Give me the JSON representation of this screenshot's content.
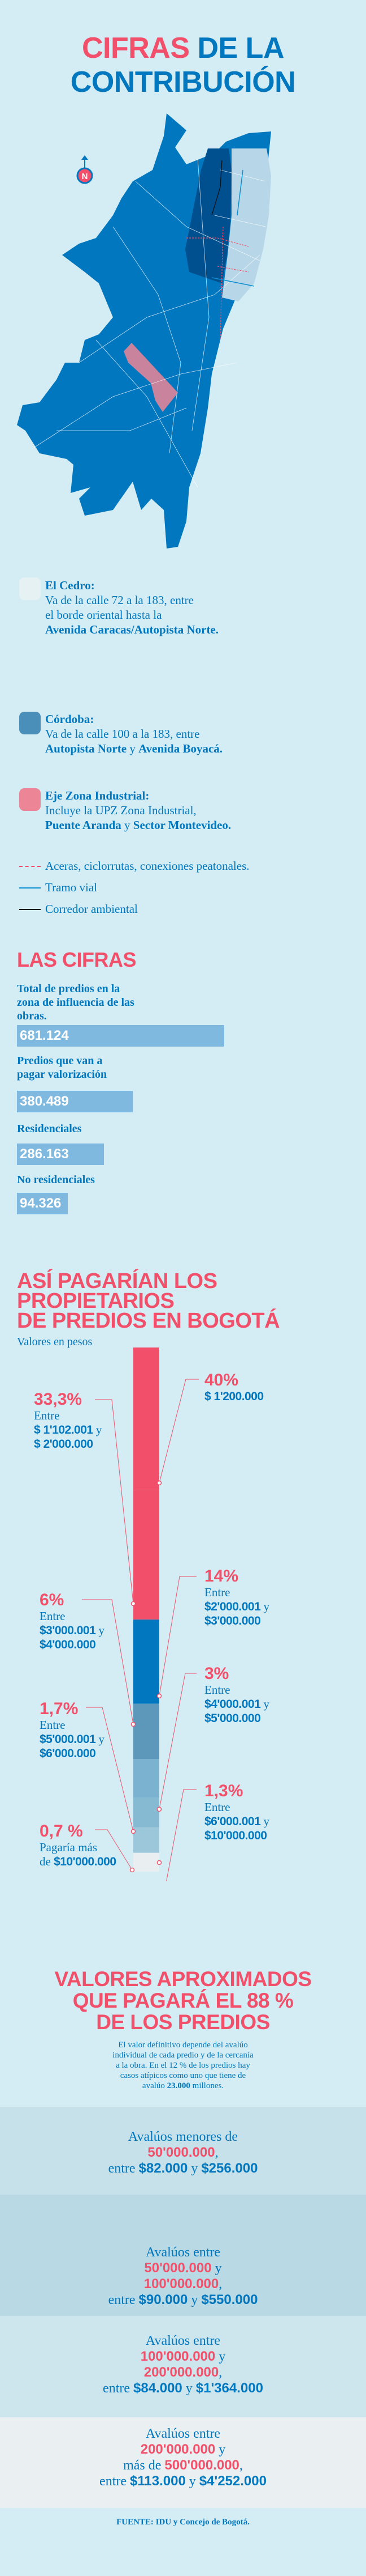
{
  "header": {
    "title_red": "CIFRAS",
    "title_blue_1": "DE LA",
    "title_blue_2": "CONTRIBUCIÓN"
  },
  "map": {
    "north_label": "N"
  },
  "legend": {
    "zones": [
      {
        "name": "El Cedro:",
        "line1": "Va de la calle 72 a la 183, entre",
        "line2": "el borde oriental hasta la",
        "bold1": "Avenida Caracas/Autopista Norte.",
        "swatch": "#e6f1f4"
      },
      {
        "name": "Córdoba:",
        "line1": "Va de la calle 100 a la 183, entre",
        "bold1": "Autopista Norte",
        "conj": "y",
        "bold2": "Avenida Boyacá.",
        "swatch": "#4a8fba"
      },
      {
        "name": "Eje Zona Industrial:",
        "line1": "Incluye la UPZ Zona Industrial,",
        "bold1": "Puente Aranda",
        "conj": "y",
        "bold2": "Sector Montevideo.",
        "swatch": "#ec8596"
      }
    ],
    "lines": [
      {
        "label": "Aceras, ciclorrutas, conexiones peatonales.",
        "color": "#f2506a"
      },
      {
        "label": "Tramo vial",
        "color": "#0a8fd0"
      },
      {
        "label": "Corredor ambiental",
        "color": "#111111"
      }
    ]
  },
  "cifras": {
    "heading": "LAS CIFRAS",
    "items": [
      {
        "label": "Total de predios en la zona de influencia de las obras.",
        "value": "681.124",
        "number": 681124
      },
      {
        "label": "Predios que van a pagar valorización",
        "value": "380.489",
        "number": 380489
      },
      {
        "label": "Residenciales",
        "value": "286.163",
        "number": 286163
      },
      {
        "label": "No residenciales",
        "value": "94.326",
        "number": 94326
      }
    ]
  },
  "pagos": {
    "heading_1": "ASÍ PAGARÍAN LOS",
    "heading_2": "PROPIETARIOS",
    "heading_3": "DE PREDIOS EN BOGOTÁ",
    "subtitle": "Valores en pesos",
    "conj": "y",
    "entre": "Entre"
  },
  "chart_data": {
    "type": "bar",
    "title": "Así pagarían los propietarios de predios en Bogotá",
    "ylabel": "Valores en pesos",
    "stacked": true,
    "categories": [
      "$ 1'200.000",
      "Entre $ 1'102.001 y $ 2'000.000",
      "Entre $2'000.001 y $3'000.000",
      "Entre $3'000.001 y $4'000.000",
      "Entre $4'000.001 y $5'000.000",
      "Entre $5'000.001 y $6'000.000",
      "Entre $6'000.001 y $10'000.000",
      "Pagaría más de $10'000.000"
    ],
    "values": [
      40,
      33.3,
      14,
      6,
      3,
      1.7,
      1.3,
      0.7
    ],
    "labels": [
      "40%",
      "33,3%",
      "14%",
      "6%",
      "3%",
      "1,7%",
      "1,3%",
      "0,7 %"
    ],
    "ranges": [
      {
        "a": "$ 1'200.000"
      },
      {
        "a": "$ 1'102.001",
        "b": "$ 2'000.000"
      },
      {
        "a": "$2'000.001",
        "b": "$3'000.000"
      },
      {
        "a": "$3'000.001",
        "b": "$4'000.000"
      },
      {
        "a": "$4'000.001",
        "b": "$5'000.000"
      },
      {
        "a": "$5'000.001",
        "b": "$6'000.000"
      },
      {
        "a": "$6'000.001",
        "b": "$10'000.000"
      },
      {
        "pre": "Pagaría más",
        "de": "de",
        "a": "$10'000.000"
      }
    ],
    "colors": [
      "#f2506a",
      "#f2506a",
      "#0077be",
      "#5d98bb",
      "#7ab2cf",
      "#86bad3",
      "#9cc6da",
      "#e9eef0"
    ]
  },
  "valores": {
    "heading_1": "VALORES APROXIMADOS",
    "heading_2": "QUE PAGARÁ EL 88 %",
    "heading_3": "DE LOS PREDIOS",
    "p1": "El valor definitivo depende del avalúo",
    "p2": "individual de cada predio y de la cercanía",
    "p3": "a la obra. En el 12 % de los predios hay",
    "p4": "casos atípicos como uno que tiene de",
    "p5a": "avalúo",
    "p5b": "23.000",
    "p5c": "millones.",
    "bands": [
      {
        "l1": "Avalúos menores de",
        "v1": "50'000.000",
        "entre": "entre",
        "min": "$82.000",
        "y": "y",
        "max": "$256.000",
        "color": "#c6e1ea"
      },
      {
        "l1": "Avalúos entre",
        "v1": "50'000.000",
        "v2": "100'000.000",
        "entre": "entre",
        "min": "$90.000",
        "y": "y",
        "max": "$550.000",
        "color": "#b9d9e4"
      },
      {
        "l1": "Avalúos entre",
        "v1": "100'000.000",
        "v2": "200'000.000",
        "entre": "entre",
        "min": "$84.000",
        "y": "y",
        "max": "$1'364.000",
        "color": "#cde6ee"
      },
      {
        "l1": "Avalúos entre",
        "v1": "200'000.000",
        "mas": "más de",
        "v2": "500'000.000",
        "entre": "entre",
        "min": "$113.000",
        "y": "y",
        "max": "$4'252.000",
        "color": "#eaf0f2"
      }
    ],
    "source": "FUENTE: IDU y Concejo de Bogotá."
  }
}
